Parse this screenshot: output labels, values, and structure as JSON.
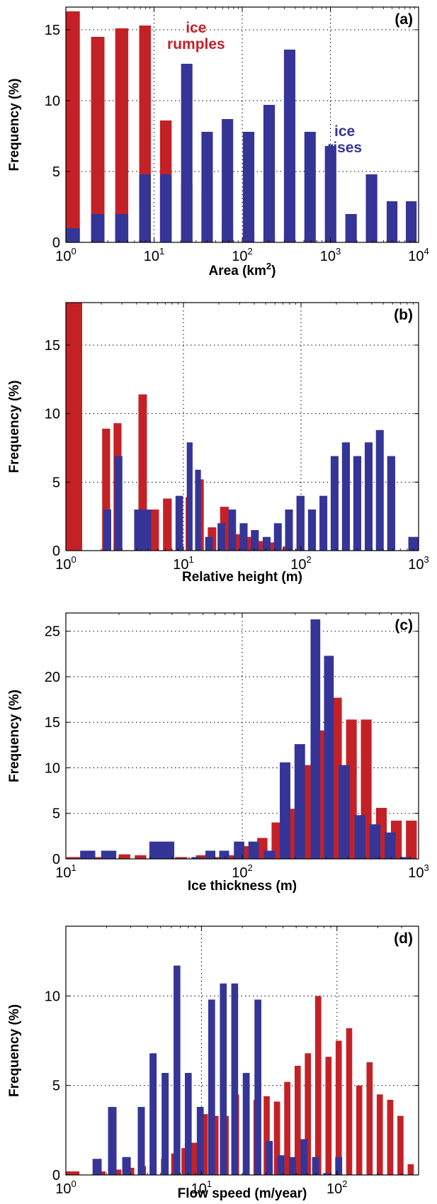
{
  "colors": {
    "ice_rumples": "#c42127",
    "ice_rises": "#353597",
    "grid": "#000000"
  },
  "chart_data": [
    {
      "type": "bar",
      "panel_label": "(a)",
      "xlabel": "Area (km",
      "xlabel_sup": "2",
      "xlabel_suffix": ")",
      "ylabel": "Frequency (%)",
      "xscale": "log",
      "xlim": [
        1,
        10000
      ],
      "ylim": [
        0,
        16.6
      ],
      "xticks": [
        1,
        10,
        100,
        1000,
        10000
      ],
      "xtick_labels": [
        {
          "base": "10",
          "exp": "0"
        },
        {
          "base": "10",
          "exp": "1"
        },
        {
          "base": "10",
          "exp": "2"
        },
        {
          "base": "10",
          "exp": "3"
        },
        {
          "base": "10",
          "exp": "4"
        }
      ],
      "yticks": [
        0,
        5,
        10,
        15
      ],
      "ytick_labels": [
        "0",
        "5",
        "10",
        "15"
      ],
      "grid": true,
      "annotations": [
        {
          "lines": [
            "ice",
            "rumples"
          ],
          "series": 0,
          "x": 30,
          "y": 14.8
        },
        {
          "lines": [
            "ice",
            "rises"
          ],
          "series": 1,
          "x": 1450,
          "y": 7.5
        }
      ],
      "series": [
        {
          "x": [
            1.2,
            2.3,
            4.3,
            7.9,
            13.6,
            23.5,
            40,
            68,
            118,
            202,
            345,
            588,
            1005,
            1715,
            2930,
            5000
          ],
          "values": [
            16.3,
            14.5,
            15.1,
            15.3,
            8.6,
            4.1,
            3.5,
            1.4,
            0.8,
            0.5,
            0.4,
            0.3,
            0.2,
            0.1,
            0.1,
            0.1
          ]
        },
        {
          "x": [
            1.2,
            2.3,
            4.3,
            7.9,
            13.6,
            23.5,
            40,
            68,
            118,
            202,
            345,
            588,
            1005,
            1715,
            2930,
            5000,
            8250
          ],
          "values": [
            1,
            2,
            2,
            4.8,
            4.8,
            12.6,
            7.8,
            8.7,
            7.8,
            9.7,
            13.6,
            7.8,
            6.8,
            2,
            4.8,
            2.9,
            2.9
          ]
        }
      ]
    },
    {
      "type": "bar",
      "panel_label": "(b)",
      "xlabel": "Relative height (m)",
      "ylabel": "Frequency (%)",
      "xscale": "log",
      "xlim": [
        1,
        1000
      ],
      "ylim": [
        0,
        18.1
      ],
      "xticks": [
        1,
        10,
        100,
        1000
      ],
      "xtick_labels": [
        {
          "base": "10",
          "exp": "0"
        },
        {
          "base": "10",
          "exp": "1"
        },
        {
          "base": "10",
          "exp": "2"
        },
        {
          "base": "10",
          "exp": "3"
        }
      ],
      "yticks": [
        0,
        5,
        10,
        15
      ],
      "ytick_labels": [
        "0",
        "5",
        "10",
        "15"
      ],
      "grid": true,
      "series": [
        {
          "x": [
            1.08,
            2.2,
            2.75,
            4.5,
            5.7,
            7.3,
            9.3,
            11.1,
            13.8,
            17.5,
            22.3,
            28.5,
            36.5,
            46.5,
            59.5,
            76,
            97
          ],
          "values": [
            18.1,
            8.9,
            9.3,
            11.4,
            3,
            3.8,
            3.9,
            3.9,
            5.2,
            1.7,
            3.2,
            1.2,
            1,
            0.7,
            0.6,
            0.3,
            0.1
          ]
        },
        {
          "x": [
            2.25,
            2.8,
            4.5,
            9.2,
            11.3,
            13.3,
            16.5,
            21,
            26,
            32.5,
            40.5,
            51,
            63.5,
            79,
            99,
            124,
            155,
            193,
            241,
            301,
            376,
            468,
            585,
            980
          ],
          "values": [
            3,
            6.9,
            3,
            4,
            7.9,
            5.9,
            1,
            2,
            3,
            2,
            1.5,
            1,
            2,
            3,
            4,
            3,
            4,
            6.9,
            7.9,
            6.9,
            7.9,
            8.8,
            6.9,
            1
          ]
        }
      ]
    },
    {
      "type": "bar",
      "panel_label": "(c)",
      "xlabel": "Ice thickness (m)",
      "ylabel": "Frequency (%)",
      "xscale": "log",
      "xlim": [
        10,
        1000
      ],
      "ylim": [
        0,
        27
      ],
      "xticks": [
        10,
        100,
        1000
      ],
      "xtick_labels": [
        {
          "base": "10",
          "exp": "1"
        },
        {
          "base": "10",
          "exp": "2"
        },
        {
          "base": "10",
          "exp": "3"
        }
      ],
      "yticks": [
        0,
        5,
        10,
        15,
        20,
        25
      ],
      "ytick_labels": [
        "0",
        "5",
        "10",
        "15",
        "20",
        "25"
      ],
      "grid": true,
      "series": [
        {
          "x": [
            11.3,
            15.5,
            21.5,
            26.5,
            36,
            45,
            59,
            73,
            88,
            108,
            130,
            157,
            190,
            231,
            281,
            342,
            416,
            505,
            615,
            748,
            910
          ],
          "values": [
            0.2,
            0.2,
            0.5,
            0.4,
            0.4,
            0.2,
            0.4,
            0.2,
            0.4,
            1.4,
            2.3,
            4,
            5.5,
            10.3,
            14.1,
            17.7,
            15.3,
            15.3,
            5.6,
            4.2,
            4.2
          ]
        },
        {
          "x": [
            13.3,
            17.5,
            35,
            55,
            66,
            79,
            96,
            116,
            143,
            175,
            212,
            260,
            310,
            378,
            465,
            566,
            690,
            843
          ],
          "values": [
            0.9,
            0.9,
            1.9,
            0.2,
            0.9,
            0.9,
            1.9,
            1.9,
            0.9,
            10.6,
            12.6,
            26.3,
            22.3,
            10.3,
            4.8,
            3.8,
            2.9,
            0.2
          ]
        }
      ]
    },
    {
      "type": "bar",
      "panel_label": "(d)",
      "xlabel": "Flow speed (m/year)",
      "ylabel": "Frequency (%)",
      "xscale": "log",
      "xlim": [
        1,
        400
      ],
      "ylim": [
        0,
        13.9
      ],
      "xticks": [
        1,
        10,
        100
      ],
      "xtick_labels": [
        {
          "base": "10",
          "exp": "0"
        },
        {
          "base": "10",
          "exp": "1"
        },
        {
          "base": "10",
          "exp": "2"
        }
      ],
      "yticks": [
        0,
        5,
        10
      ],
      "ytick_labels": [
        "0",
        "5",
        "10"
      ],
      "grid": true,
      "series": [
        {
          "x": [
            1.08,
            1.8,
            2.4,
            3.0,
            3.7,
            4.4,
            5.3,
            6.3,
            7.5,
            8.9,
            10.6,
            12.7,
            15.1,
            18,
            21.4,
            25.5,
            30.3,
            36.1,
            43,
            51.3,
            61,
            72.7,
            86.6,
            103,
            123,
            146,
            174,
            207,
            247,
            294,
            350
          ],
          "values": [
            0.2,
            0.2,
            0.3,
            0.4,
            0.5,
            0.7,
            0.9,
            1.2,
            1.5,
            1.8,
            3.4,
            3.3,
            3.3,
            4.5,
            3.7,
            4.2,
            4.4,
            4.1,
            5.2,
            6.1,
            6.8,
            10,
            6.6,
            7.5,
            8.2,
            5,
            6.3,
            4.5,
            4.2,
            3.3,
            0.6
          ]
        },
        {
          "x": [
            1.7,
            2.2,
            2.8,
            3.6,
            4.4,
            5.4,
            6.6,
            8,
            9.8,
            11.9,
            14.5,
            17.6,
            21.4,
            26.1,
            31.7,
            38.6,
            47,
            57.1,
            69.5,
            84.6,
            103
          ],
          "values": [
            0.9,
            3.8,
            1,
            3.8,
            6.8,
            5.7,
            11.7,
            5.7,
            3.8,
            9.8,
            10.7,
            10.7,
            5.7,
            9.8,
            1.9,
            1.1,
            1,
            2,
            1,
            0.1,
            1
          ]
        }
      ]
    }
  ]
}
